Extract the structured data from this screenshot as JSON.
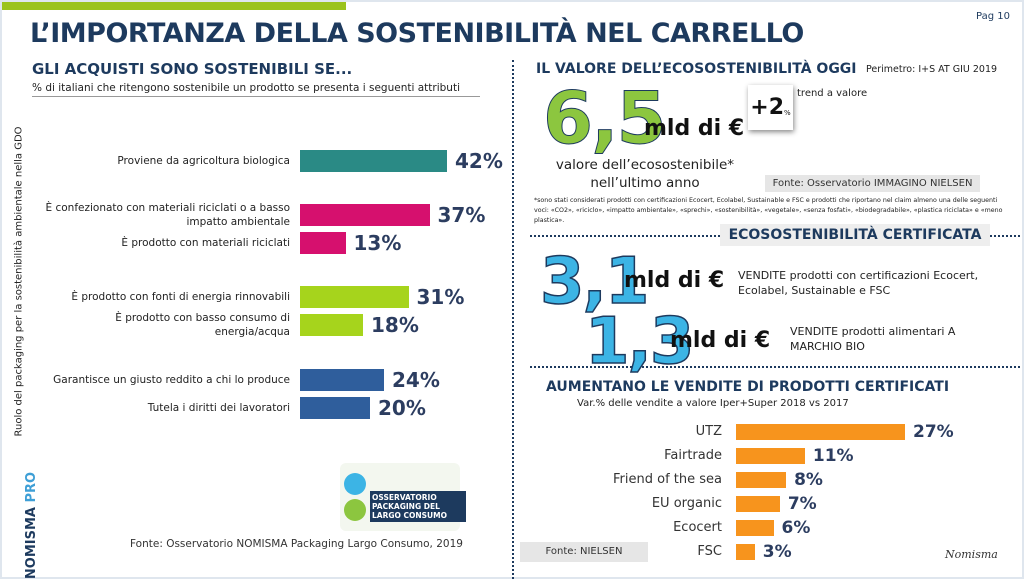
{
  "page": "Pag 10",
  "title": "L’IMPORTANZA DELLA SOSTENIBILITÀ NEL CARRELLO",
  "side_label": "Ruolo del packaging per la sostenibilità ambientale nella GDO",
  "brand_main": "NOMISMA",
  "brand_sub": "PRO",
  "logo_text": "OSSERVATORIO PACKAGING DEL LARGO CONSUMO",
  "value_title": "IL VALORE DELL’ECOSOSTENIBILITÀ OGGI",
  "perimeter": "Perimetro: I+S AT GIU 2019",
  "eco_value": "6,5",
  "eco_unit": "mld di €",
  "trend_value": "+2",
  "trend_unit": "%",
  "trend_label": "trend a valore",
  "eco_caption": "valore dell’ecosostenibile* nell’ultimo anno",
  "eco_source": "Fonte: Osservatorio IMMAGINO NIELSEN",
  "footnote": "*sono stati considerati prodotti con certificazioni Ecocert, Ecolabel, Sustainable e FSC e prodotti che riportano nel claim almeno una delle seguenti voci: «CO2», «riciclo», «impatto ambientale», «sprechi», «sostenibilità», «vegetale», «senza fosfati», «biodegradabile», «plastica riciclata» e «meno plastica».",
  "cert_title": "ECOSOSTENIBILITÀ CERTIFICATA",
  "cert_value": "3,1",
  "cert_unit": "mld di €",
  "cert_text": "VENDITE prodotti con certificazioni Ecocert, Ecolabel, Sustainable e FSC",
  "bio_value": "1,3",
  "bio_unit": "mld di €",
  "bio_text": "VENDITE prodotti alimentari A MARCHIO BIO",
  "signature": "Nomisma",
  "chart_data": [
    {
      "type": "bar",
      "orientation": "horizontal",
      "title": "GLI ACQUISTI SONO SOSTENIBILI SE...",
      "subtitle": "% di italiani che ritengono sostenibile un prodotto se presenta i seguenti attributi",
      "categories": [
        "Proviene da agricoltura biologica",
        "È confezionato con materiali riciclati o a basso impatto ambientale",
        "È prodotto con materiali riciclati",
        "È prodotto con fonti di energia rinnovabili",
        "È prodotto con basso consumo di energia/acqua",
        "Garantisce un giusto reddito a chi lo produce",
        "Tutela i diritti dei lavoratori"
      ],
      "values": [
        42,
        37,
        13,
        31,
        18,
        24,
        20
      ],
      "value_labels": [
        "42%",
        "37%",
        "13%",
        "31%",
        "18%",
        "24%",
        "20%"
      ],
      "colors": [
        "#2a8a85",
        "#d6106e",
        "#d6106e",
        "#a6d41c",
        "#a6d41c",
        "#2f5e9c",
        "#2f5e9c"
      ],
      "source": "Fonte: Osservatorio NOMISMA Packaging Largo Consumo, 2019"
    },
    {
      "type": "bar",
      "orientation": "horizontal",
      "title": "AUMENTANO LE VENDITE DI PRODOTTI CERTIFICATI",
      "subtitle": "Var.% delle vendite a valore Iper+Super 2018 vs 2017",
      "categories": [
        "UTZ",
        "Fairtrade",
        "Friend of the sea",
        "EU organic",
        "Ecocert",
        "FSC"
      ],
      "values": [
        27,
        11,
        8,
        7,
        6,
        3
      ],
      "value_labels": [
        "27%",
        "11%",
        "8%",
        "7%",
        "6%",
        "3%"
      ],
      "color": "#f7941d",
      "source": "Fonte: NIELSEN"
    }
  ]
}
